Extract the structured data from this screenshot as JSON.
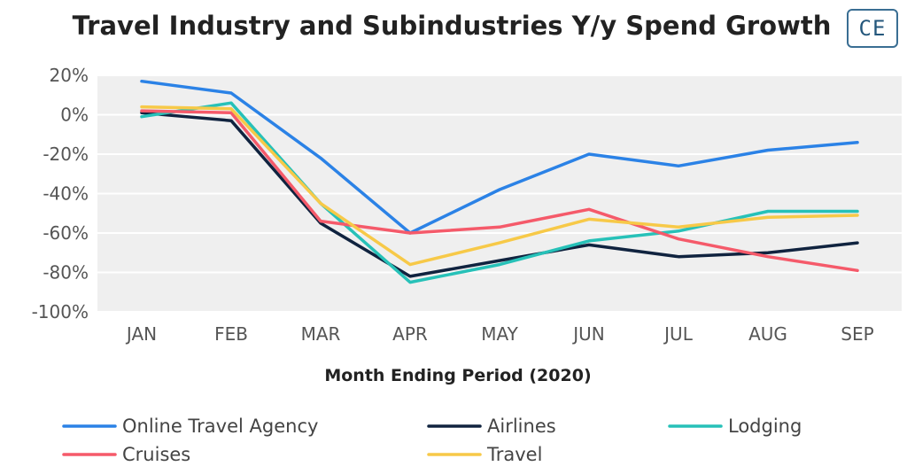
{
  "header": {
    "logo_text": "CE"
  },
  "chart_data": {
    "type": "line",
    "title": "Travel Industry and Subindustries Y/y Spend Growth",
    "xlabel": "Month Ending Period (2020)",
    "ylabel": "",
    "categories": [
      "JAN",
      "FEB",
      "MAR",
      "APR",
      "MAY",
      "JUN",
      "JUL",
      "AUG",
      "SEP"
    ],
    "ylim": [
      -100,
      20
    ],
    "yticks": [
      20,
      0,
      -20,
      -40,
      -60,
      -80,
      -100
    ],
    "ytick_labels": [
      "20%",
      "0%",
      "-20%",
      "-40%",
      "-60%",
      "-80%",
      "-100%"
    ],
    "grid": "horizontal",
    "legend_position": "bottom",
    "series": [
      {
        "name": "Online Travel Agency",
        "color": "#2b82e6",
        "values": [
          17,
          11,
          -22,
          -60,
          -38,
          -20,
          -26,
          -18,
          -14
        ]
      },
      {
        "name": "Airlines",
        "color": "#10233f",
        "values": [
          1,
          -3,
          -55,
          -82,
          -74,
          -66,
          -72,
          -70,
          -65
        ]
      },
      {
        "name": "Lodging",
        "color": "#27c1b8",
        "values": [
          -1,
          6,
          -45,
          -85,
          -76,
          -64,
          -59,
          -49,
          -49
        ]
      },
      {
        "name": "Cruises",
        "color": "#f55a6a",
        "values": [
          2,
          1,
          -54,
          -60,
          -57,
          -48,
          -63,
          -72,
          -79
        ]
      },
      {
        "name": "Travel",
        "color": "#f7c948",
        "values": [
          4,
          3,
          -45,
          -76,
          -65,
          -53,
          -57,
          -52,
          -51
        ]
      }
    ]
  }
}
